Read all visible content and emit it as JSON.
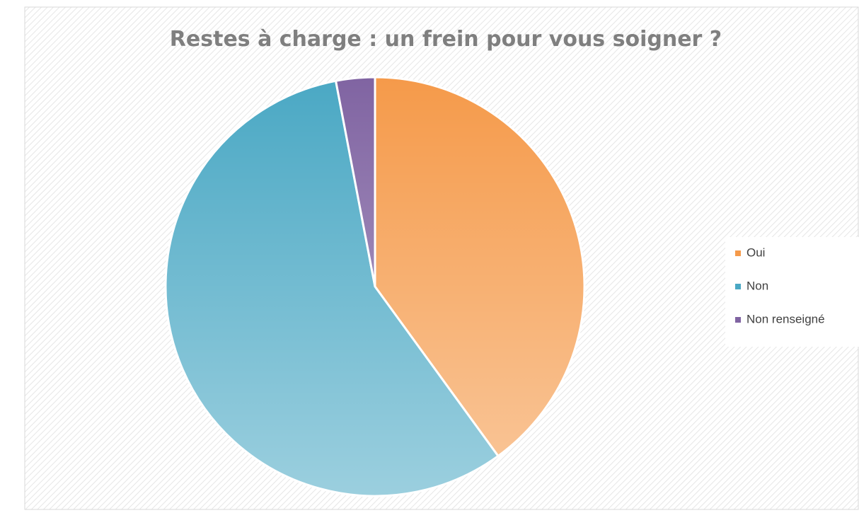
{
  "chart_data": {
    "type": "pie",
    "title": "Restes à charge : un frein pour vous soigner ?",
    "categories": [
      "Oui",
      "Non",
      "Non renseigné"
    ],
    "values": [
      40,
      57,
      3
    ],
    "colors": [
      "#f59a4a",
      "#4aa8c4",
      "#8064a2"
    ],
    "legend": "right"
  }
}
